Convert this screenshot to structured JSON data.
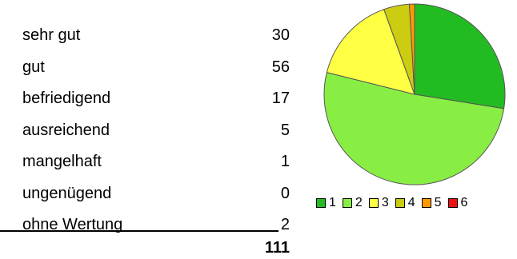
{
  "table": {
    "rows": [
      {
        "label": "sehr gut",
        "value": "30"
      },
      {
        "label": "gut",
        "value": "56"
      },
      {
        "label": "befriedigend",
        "value": "17"
      },
      {
        "label": "ausreichend",
        "value": "5"
      },
      {
        "label": "mangelhaft",
        "value": "1"
      },
      {
        "label": "ungenügend",
        "value": "0"
      },
      {
        "label": "ohne Wertung",
        "value": "2"
      }
    ],
    "total": "111"
  },
  "chart_data": {
    "type": "pie",
    "categories": [
      "1",
      "2",
      "3",
      "4",
      "5",
      "6"
    ],
    "values": [
      30,
      56,
      17,
      5,
      1,
      0
    ],
    "colors": [
      "#22bb22",
      "#88ee44",
      "#ffff44",
      "#cccc11",
      "#ff9900",
      "#ee1111"
    ],
    "legend_position": "bottom"
  }
}
